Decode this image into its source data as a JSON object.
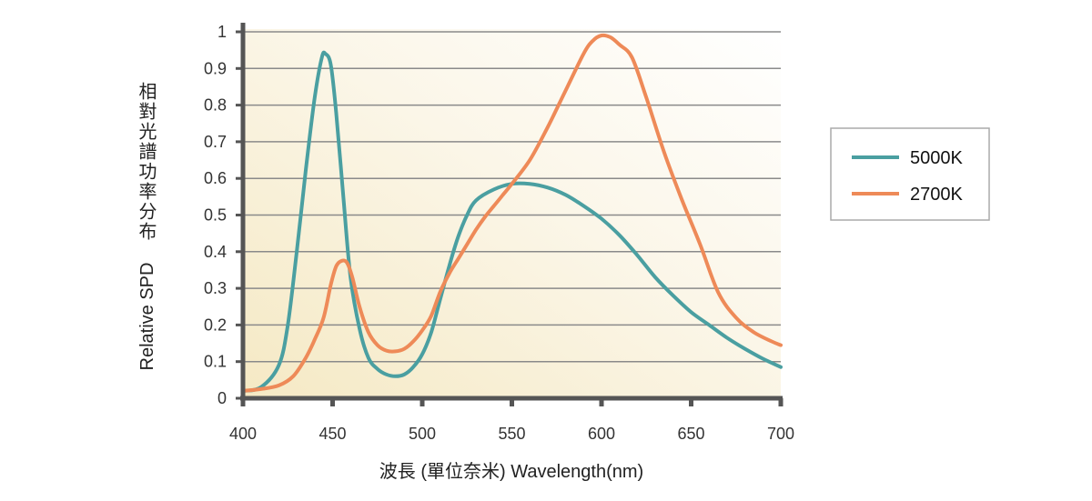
{
  "chart_data": {
    "type": "line",
    "title": "",
    "xlabel": "波長 (單位奈米)  Wavelength(nm)",
    "ylabel_cn": "相對光譜功率分布",
    "ylabel_en": "Relative SPD",
    "xlim": [
      400,
      700
    ],
    "ylim": [
      0,
      1
    ],
    "x_ticks": [
      "400",
      "450",
      "500",
      "550",
      "600",
      "650",
      "700"
    ],
    "y_ticks": [
      "0",
      "0.1",
      "0.2",
      "0.3",
      "0.4",
      "0.5",
      "0.6",
      "0.7",
      "0.8",
      "0.9",
      "1"
    ],
    "grid": "horizontal",
    "legend_position": "right",
    "series": [
      {
        "name": "5000K",
        "color": "#4a9fa1",
        "points": [
          [
            400,
            0.02
          ],
          [
            410,
            0.03
          ],
          [
            420,
            0.09
          ],
          [
            425,
            0.2
          ],
          [
            430,
            0.4
          ],
          [
            435,
            0.62
          ],
          [
            440,
            0.82
          ],
          [
            444,
            0.93
          ],
          [
            446,
            0.94
          ],
          [
            449,
            0.91
          ],
          [
            452,
            0.78
          ],
          [
            456,
            0.55
          ],
          [
            460,
            0.33
          ],
          [
            465,
            0.19
          ],
          [
            470,
            0.11
          ],
          [
            475,
            0.08
          ],
          [
            480,
            0.065
          ],
          [
            485,
            0.06
          ],
          [
            490,
            0.065
          ],
          [
            495,
            0.085
          ],
          [
            500,
            0.12
          ],
          [
            505,
            0.18
          ],
          [
            510,
            0.27
          ],
          [
            515,
            0.36
          ],
          [
            520,
            0.44
          ],
          [
            525,
            0.5
          ],
          [
            530,
            0.54
          ],
          [
            540,
            0.57
          ],
          [
            550,
            0.585
          ],
          [
            560,
            0.585
          ],
          [
            570,
            0.575
          ],
          [
            580,
            0.555
          ],
          [
            590,
            0.525
          ],
          [
            600,
            0.49
          ],
          [
            610,
            0.445
          ],
          [
            620,
            0.39
          ],
          [
            630,
            0.33
          ],
          [
            640,
            0.28
          ],
          [
            650,
            0.235
          ],
          [
            660,
            0.2
          ],
          [
            670,
            0.165
          ],
          [
            680,
            0.135
          ],
          [
            690,
            0.108
          ],
          [
            700,
            0.085
          ]
        ]
      },
      {
        "name": "2700K",
        "color": "#ee8a58",
        "points": [
          [
            400,
            0.02
          ],
          [
            410,
            0.025
          ],
          [
            420,
            0.035
          ],
          [
            428,
            0.06
          ],
          [
            435,
            0.11
          ],
          [
            440,
            0.16
          ],
          [
            445,
            0.22
          ],
          [
            449,
            0.31
          ],
          [
            452,
            0.36
          ],
          [
            455,
            0.375
          ],
          [
            458,
            0.37
          ],
          [
            461,
            0.33
          ],
          [
            465,
            0.25
          ],
          [
            470,
            0.18
          ],
          [
            475,
            0.145
          ],
          [
            480,
            0.13
          ],
          [
            485,
            0.128
          ],
          [
            490,
            0.135
          ],
          [
            495,
            0.155
          ],
          [
            500,
            0.185
          ],
          [
            505,
            0.225
          ],
          [
            510,
            0.29
          ],
          [
            515,
            0.34
          ],
          [
            520,
            0.38
          ],
          [
            525,
            0.42
          ],
          [
            530,
            0.46
          ],
          [
            535,
            0.495
          ],
          [
            540,
            0.525
          ],
          [
            545,
            0.555
          ],
          [
            550,
            0.585
          ],
          [
            560,
            0.65
          ],
          [
            570,
            0.74
          ],
          [
            580,
            0.84
          ],
          [
            590,
            0.94
          ],
          [
            595,
            0.975
          ],
          [
            600,
            0.99
          ],
          [
            605,
            0.985
          ],
          [
            610,
            0.965
          ],
          [
            617,
            0.93
          ],
          [
            625,
            0.82
          ],
          [
            635,
            0.67
          ],
          [
            645,
            0.54
          ],
          [
            655,
            0.42
          ],
          [
            665,
            0.29
          ],
          [
            675,
            0.22
          ],
          [
            685,
            0.18
          ],
          [
            695,
            0.155
          ],
          [
            700,
            0.145
          ]
        ]
      }
    ]
  }
}
